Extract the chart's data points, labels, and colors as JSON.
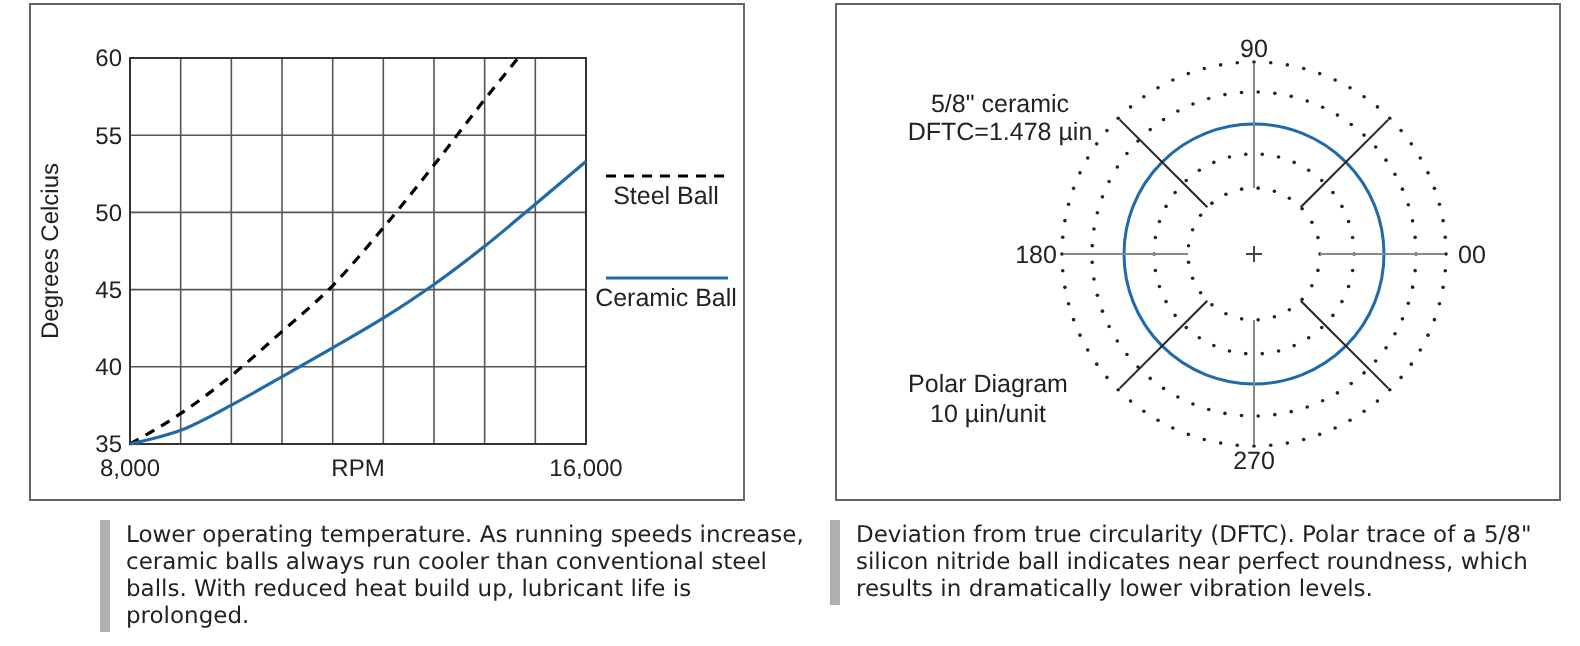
{
  "chart_data": [
    {
      "type": "line",
      "xlabel": "RPM",
      "ylabel": "Degrees Celcius",
      "xlim": [
        8000,
        16000
      ],
      "ylim": [
        35,
        60
      ],
      "xticks": [
        {
          "value": 8000,
          "label": "8,000"
        },
        {
          "value": 8889,
          "label": null
        },
        {
          "value": 9778,
          "label": null
        },
        {
          "value": 10667,
          "label": null
        },
        {
          "value": 11556,
          "label": null
        },
        {
          "value": 12444,
          "label": null
        },
        {
          "value": 13333,
          "label": null
        },
        {
          "value": 14222,
          "label": null
        },
        {
          "value": 15111,
          "label": null
        },
        {
          "value": 16000,
          "label": "16,000"
        }
      ],
      "yticks": [
        35,
        40,
        45,
        50,
        55,
        60
      ],
      "grid": true,
      "legend": "right",
      "series": [
        {
          "name": "Steel Ball",
          "color": "#000000",
          "line_style": "dashed",
          "x": [
            8000,
            8900,
            9770,
            10640,
            11540,
            12420,
            13320,
            14220,
            14810
          ],
          "values": [
            35,
            37,
            39.4,
            42.2,
            45.2,
            48.9,
            53,
            57.3,
            60
          ]
        },
        {
          "name": "Ceramic Ball",
          "color": "#1f6aa8",
          "line_style": "solid",
          "x": [
            8000,
            8900,
            9770,
            10640,
            11540,
            12420,
            13320,
            14220,
            15100,
            16000
          ],
          "values": [
            35,
            35.9,
            37.5,
            39.3,
            41.2,
            43.1,
            45.3,
            47.8,
            50.5,
            53.3
          ]
        }
      ],
      "annotations": [
        "Lower operating temperature. As running speeds increase, ceramic balls always run cooler than conventional steel balls. With reduced heat build up, lubricant life is prolonged."
      ]
    },
    {
      "type": "other",
      "categories": [
        "90",
        "00",
        "270",
        "180"
      ],
      "annotations": [
        "5/8\" ceramic",
        "DFTC=1.478 µin",
        "Polar Diagram",
        "10 µin/unit",
        "Deviation from true circularity (DFTC). Polar trace of a 5/8\" silicon nitride ball indicates near perfect roundness, which results in dramatically lower vibration levels."
      ]
    }
  ]
}
